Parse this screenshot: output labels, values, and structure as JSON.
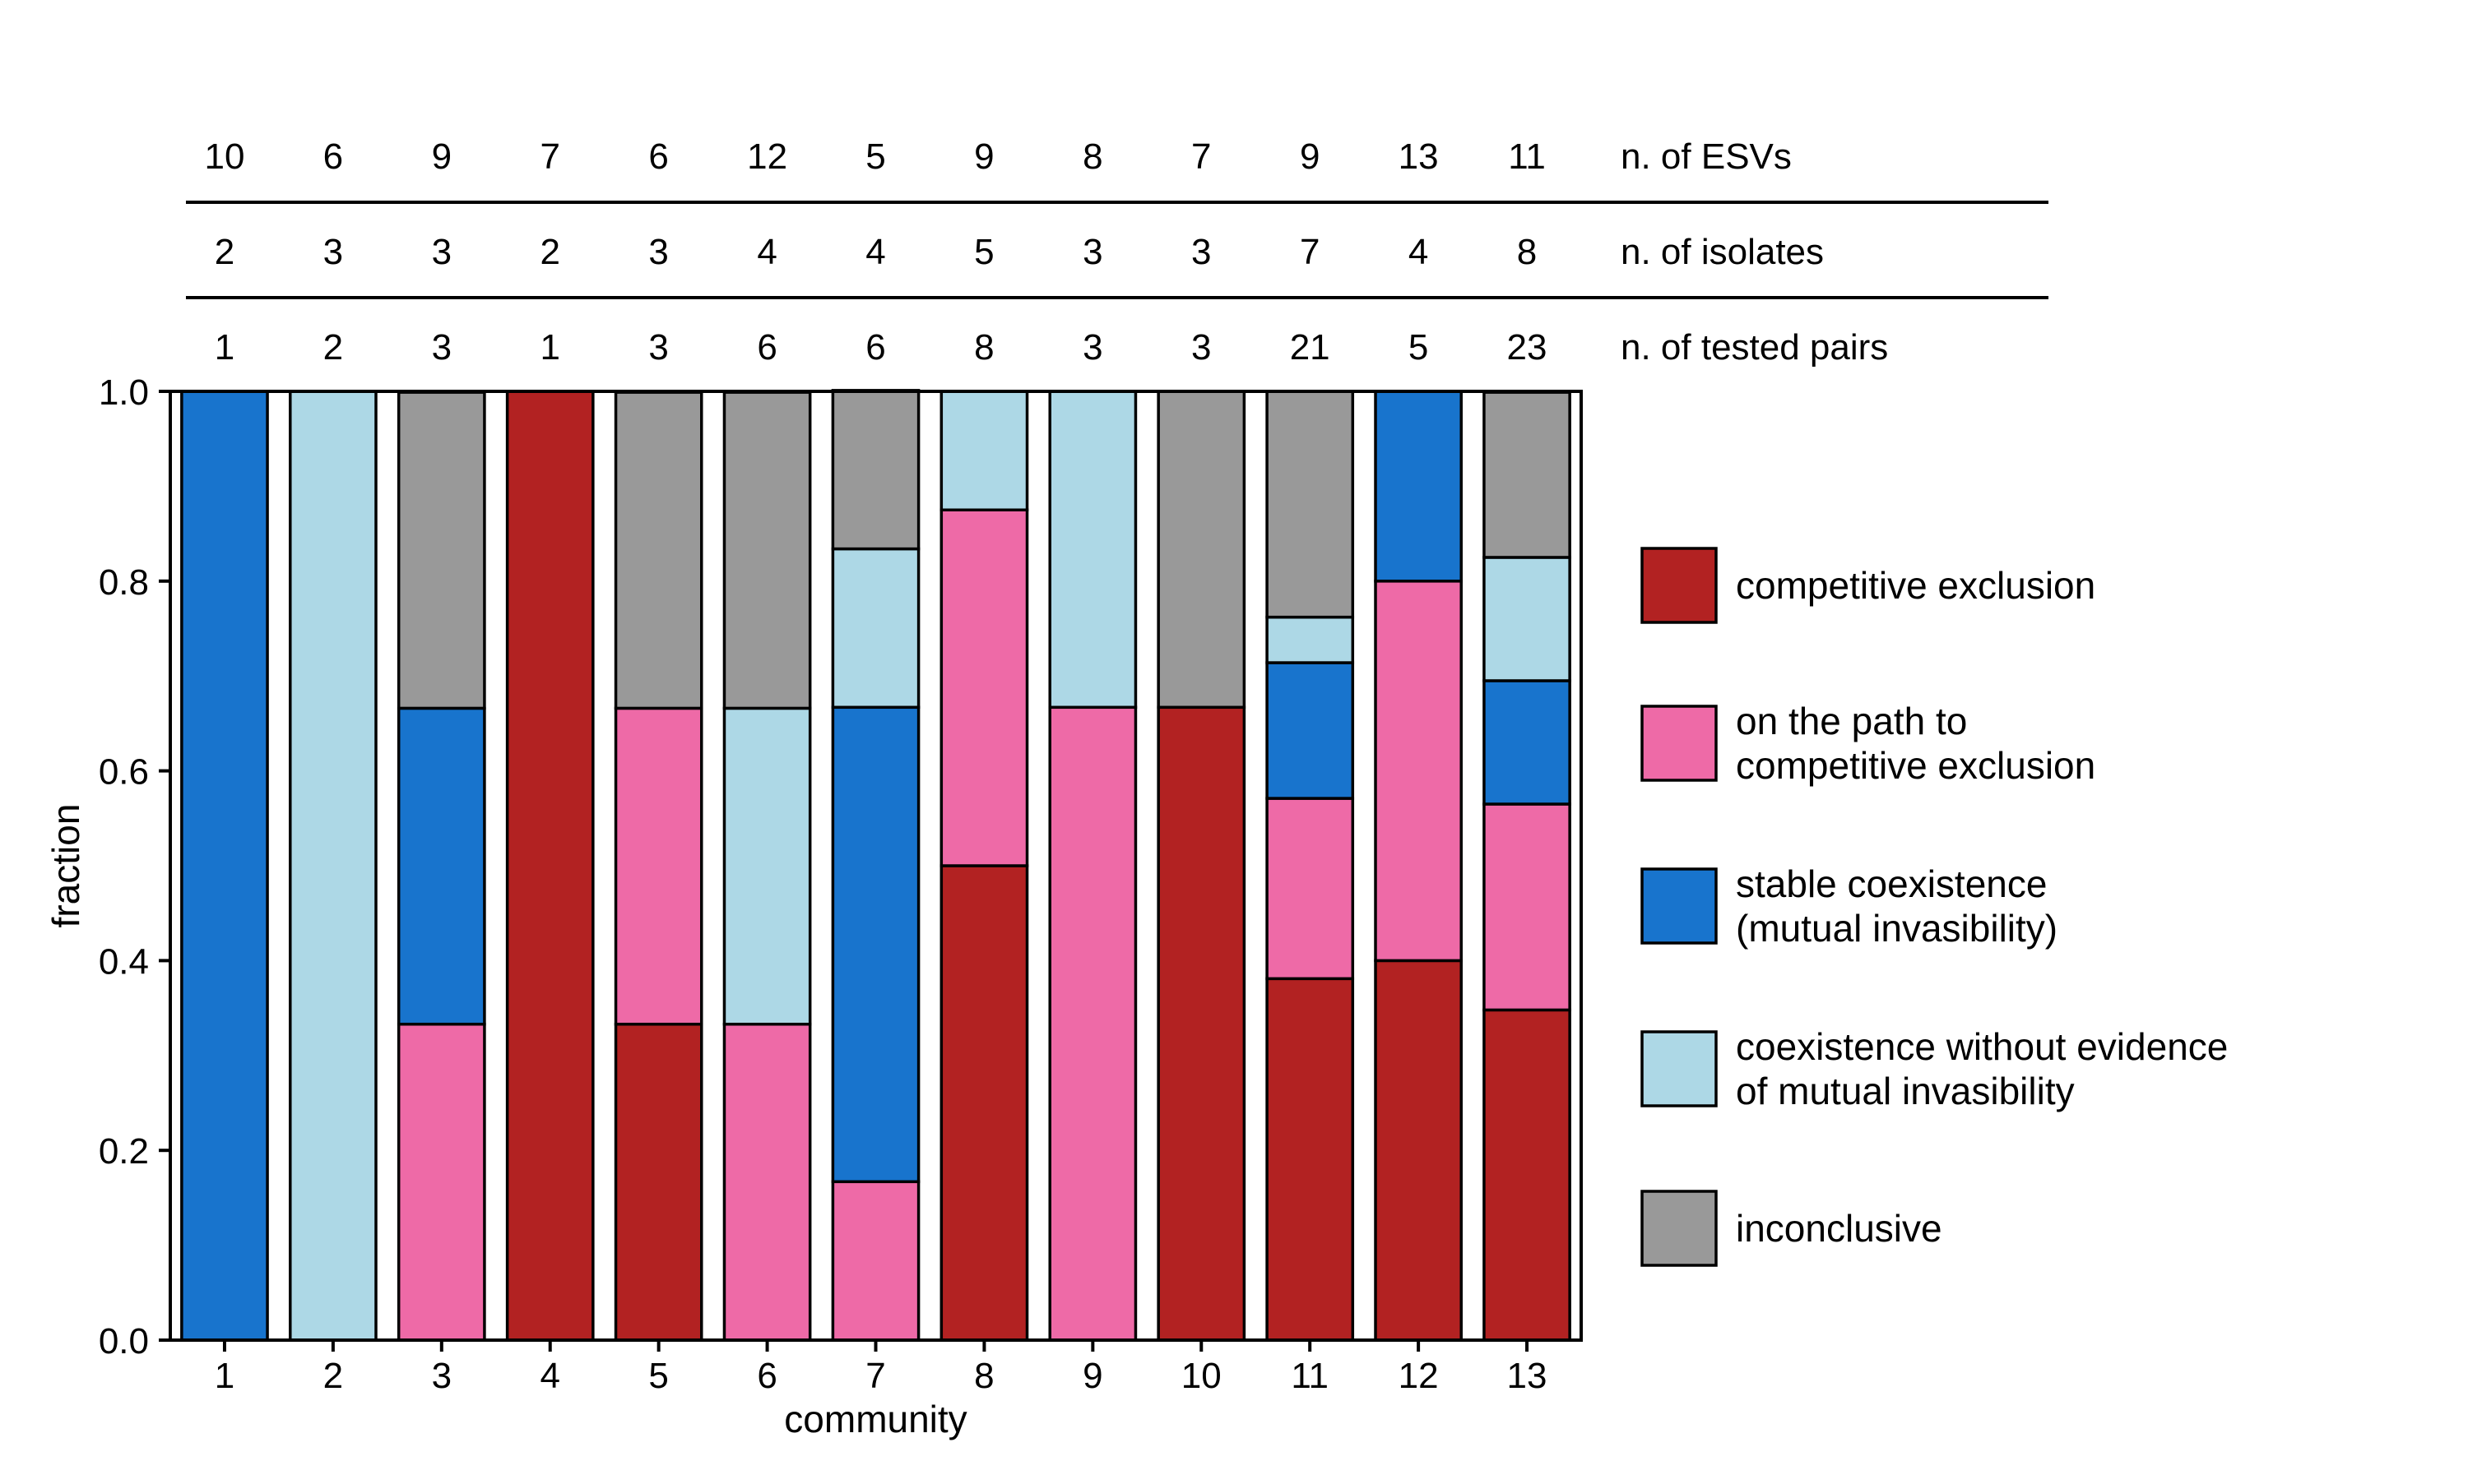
{
  "chart_data": {
    "type": "bar",
    "stacked": true,
    "xlabel": "community",
    "ylabel": "fraction",
    "ylim": [
      0,
      1
    ],
    "yticks": [
      "0.0",
      "0.2",
      "0.4",
      "0.6",
      "0.8",
      "1.0"
    ],
    "categories": [
      "1",
      "2",
      "3",
      "4",
      "5",
      "6",
      "7",
      "8",
      "9",
      "10",
      "11",
      "12",
      "13"
    ],
    "series": [
      {
        "name": "competitive exclusion",
        "color": "#b22222",
        "values": [
          0,
          0,
          0,
          1.0,
          0.333,
          0,
          0,
          0.5,
          0,
          0.667,
          0.381,
          0.4,
          0.348
        ]
      },
      {
        "name": "on the path to competitive exclusion",
        "color": "#ee6aa7",
        "values": [
          0,
          0,
          0.333,
          0,
          0.333,
          0.333,
          0.167,
          0.375,
          0.667,
          0,
          0.19,
          0.4,
          0.217
        ]
      },
      {
        "name": "stable coexistence (mutual invasibility)",
        "color": "#1874cd",
        "values": [
          1.0,
          0,
          0.333,
          0,
          0,
          0,
          0.5,
          0,
          0,
          0,
          0.143,
          0.2,
          0.13
        ]
      },
      {
        "name": "coexistence without evidence of mutual invasibility",
        "color": "#add8e6",
        "values": [
          0,
          1.0,
          0,
          0,
          0,
          0.333,
          0.167,
          0.125,
          0.333,
          0,
          0.048,
          0,
          0.13
        ]
      },
      {
        "name": "inconclusive",
        "color": "#999999",
        "values": [
          0,
          0,
          0.333,
          0,
          0.333,
          0.333,
          0.167,
          0,
          0,
          0.333,
          0.238,
          0,
          0.174
        ]
      }
    ],
    "legend": {
      "position": "right",
      "entries": [
        {
          "lines": [
            "competitive exclusion"
          ],
          "color": "#b22222"
        },
        {
          "lines": [
            "on the path to",
            "competitive exclusion"
          ],
          "color": "#ee6aa7"
        },
        {
          "lines": [
            "stable coexistence",
            "(mutual invasibility)"
          ],
          "color": "#1874cd"
        },
        {
          "lines": [
            "coexistence without evidence",
            "of mutual invasibility"
          ],
          "color": "#add8e6"
        },
        {
          "lines": [
            "inconclusive"
          ],
          "color": "#999999"
        }
      ]
    },
    "header_rows": [
      {
        "label": "n. of ESVs",
        "values": [
          "10",
          "6",
          "9",
          "7",
          "6",
          "12",
          "5",
          "9",
          "8",
          "7",
          "9",
          "13",
          "11"
        ]
      },
      {
        "label": "n. of isolates",
        "values": [
          "2",
          "3",
          "3",
          "2",
          "3",
          "4",
          "4",
          "5",
          "3",
          "3",
          "7",
          "4",
          "8"
        ]
      },
      {
        "label": "n. of tested pairs",
        "values": [
          "1",
          "2",
          "3",
          "1",
          "3",
          "6",
          "6",
          "8",
          "3",
          "3",
          "21",
          "5",
          "23"
        ]
      }
    ],
    "grid": false
  }
}
